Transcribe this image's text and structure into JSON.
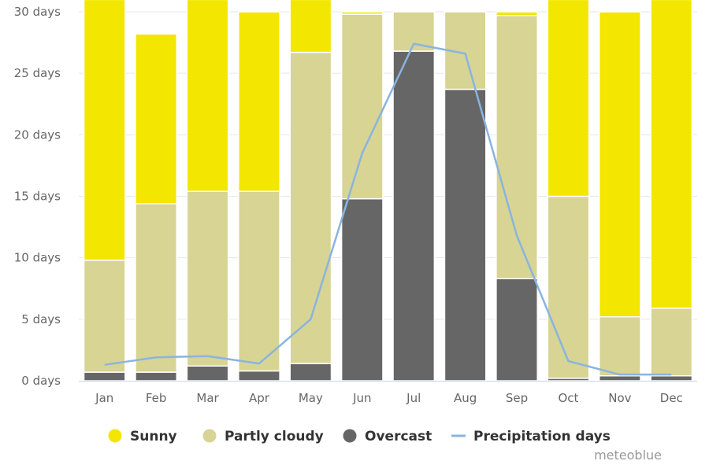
{
  "chart_data": {
    "type": "bar",
    "stacked": true,
    "title": "",
    "xlabel": "",
    "ylabel": "",
    "ylim": [
      0,
      30
    ],
    "y_ticks": [
      0,
      5,
      10,
      15,
      20,
      25,
      30
    ],
    "y_tick_labels": [
      "0 days",
      "5 days",
      "10 days",
      "15 days",
      "20 days",
      "25 days",
      "30 days"
    ],
    "grid": true,
    "legend_position": "bottom",
    "categories": [
      "Jan",
      "Feb",
      "Mar",
      "Apr",
      "May",
      "Jun",
      "Jul",
      "Aug",
      "Sep",
      "Oct",
      "Nov",
      "Dec"
    ],
    "series": [
      {
        "name": "Overcast",
        "kind": "bar",
        "color": "#666666",
        "values": [
          0.7,
          0.7,
          1.2,
          0.8,
          1.4,
          14.8,
          26.8,
          23.7,
          8.3,
          0.2,
          0.4,
          0.4
        ]
      },
      {
        "name": "Partly cloudy",
        "kind": "bar",
        "color": "#d7d494",
        "values": [
          9.1,
          13.7,
          14.2,
          14.6,
          25.3,
          15.0,
          3.2,
          6.3,
          21.4,
          14.8,
          4.8,
          5.5
        ]
      },
      {
        "name": "Sunny",
        "kind": "bar",
        "color": "#f3e600",
        "values": [
          21.2,
          13.8,
          15.6,
          14.6,
          4.3,
          0.2,
          0.0,
          0.0,
          0.3,
          16.0,
          24.8,
          25.1
        ]
      },
      {
        "name": "Precipitation days",
        "kind": "line",
        "color": "#8ab4e0",
        "values": [
          1.3,
          1.9,
          2.0,
          1.4,
          5.0,
          18.5,
          27.4,
          26.6,
          11.8,
          1.6,
          0.5,
          0.5
        ]
      }
    ],
    "legend": [
      {
        "name": "Sunny",
        "color": "#f3e600",
        "marker": "circle"
      },
      {
        "name": "Partly cloudy",
        "color": "#d7d494",
        "marker": "circle"
      },
      {
        "name": "Overcast",
        "color": "#666666",
        "marker": "circle"
      },
      {
        "name": "Precipitation days",
        "color": "#8ab4e0",
        "marker": "line"
      }
    ],
    "source_credit": "meteoblue"
  }
}
